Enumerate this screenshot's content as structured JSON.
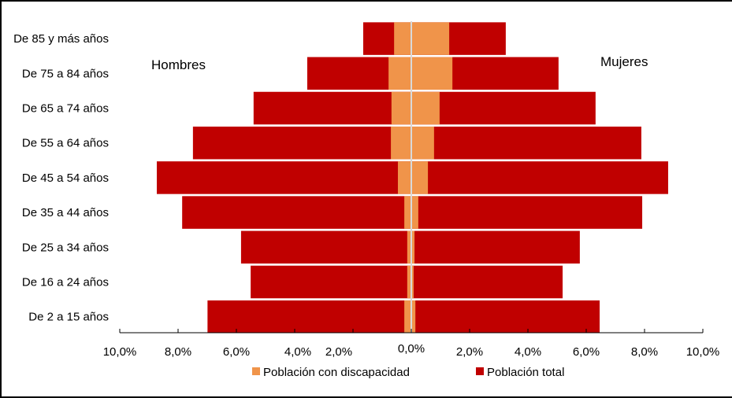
{
  "chart_data": {
    "type": "bar",
    "orientation": "horizontal",
    "subtype": "population-pyramid",
    "categories": [
      "De 85 y más años",
      "De 75 a 84 años",
      "De 65 a 74 años",
      "De 55 a 64 años",
      "De 45 a 54 años",
      "De 35 a 44 años",
      "De 25 a 34 años",
      "De 16 a 24 años",
      "De 2 a 15 años"
    ],
    "side_labels": {
      "left": "Hombres",
      "right": "Mujeres"
    },
    "series": [
      {
        "name": "Población total",
        "color": "#C00000",
        "hombres": [
          1.65,
          3.57,
          5.41,
          7.49,
          8.73,
          7.86,
          5.84,
          5.51,
          6.99
        ],
        "mujeres": [
          3.24,
          5.05,
          6.32,
          7.89,
          8.81,
          7.92,
          5.78,
          5.19,
          6.46
        ]
      },
      {
        "name": "Población con discapacidad",
        "color": "#F0944A",
        "hombres": [
          0.59,
          0.78,
          0.68,
          0.7,
          0.46,
          0.24,
          0.14,
          0.14,
          0.24
        ],
        "mujeres": [
          1.3,
          1.41,
          0.97,
          0.78,
          0.57,
          0.24,
          0.11,
          0.08,
          0.14
        ]
      }
    ],
    "xlim": [
      -10,
      10
    ],
    "x_ticks": [
      -10,
      -8,
      -6,
      -4,
      -2,
      0,
      2,
      4,
      6,
      8,
      10
    ],
    "x_tick_labels": [
      "10,0%",
      "8,0%",
      "6,0%",
      "4,0%",
      "2,0%",
      "0,0%",
      "2,0%",
      "4,0%",
      "6,0%",
      "8,0%",
      "10,0%"
    ],
    "legend": {
      "position": "bottom",
      "items": [
        "Población con discapacidad",
        "Población total"
      ]
    },
    "grid": false
  }
}
